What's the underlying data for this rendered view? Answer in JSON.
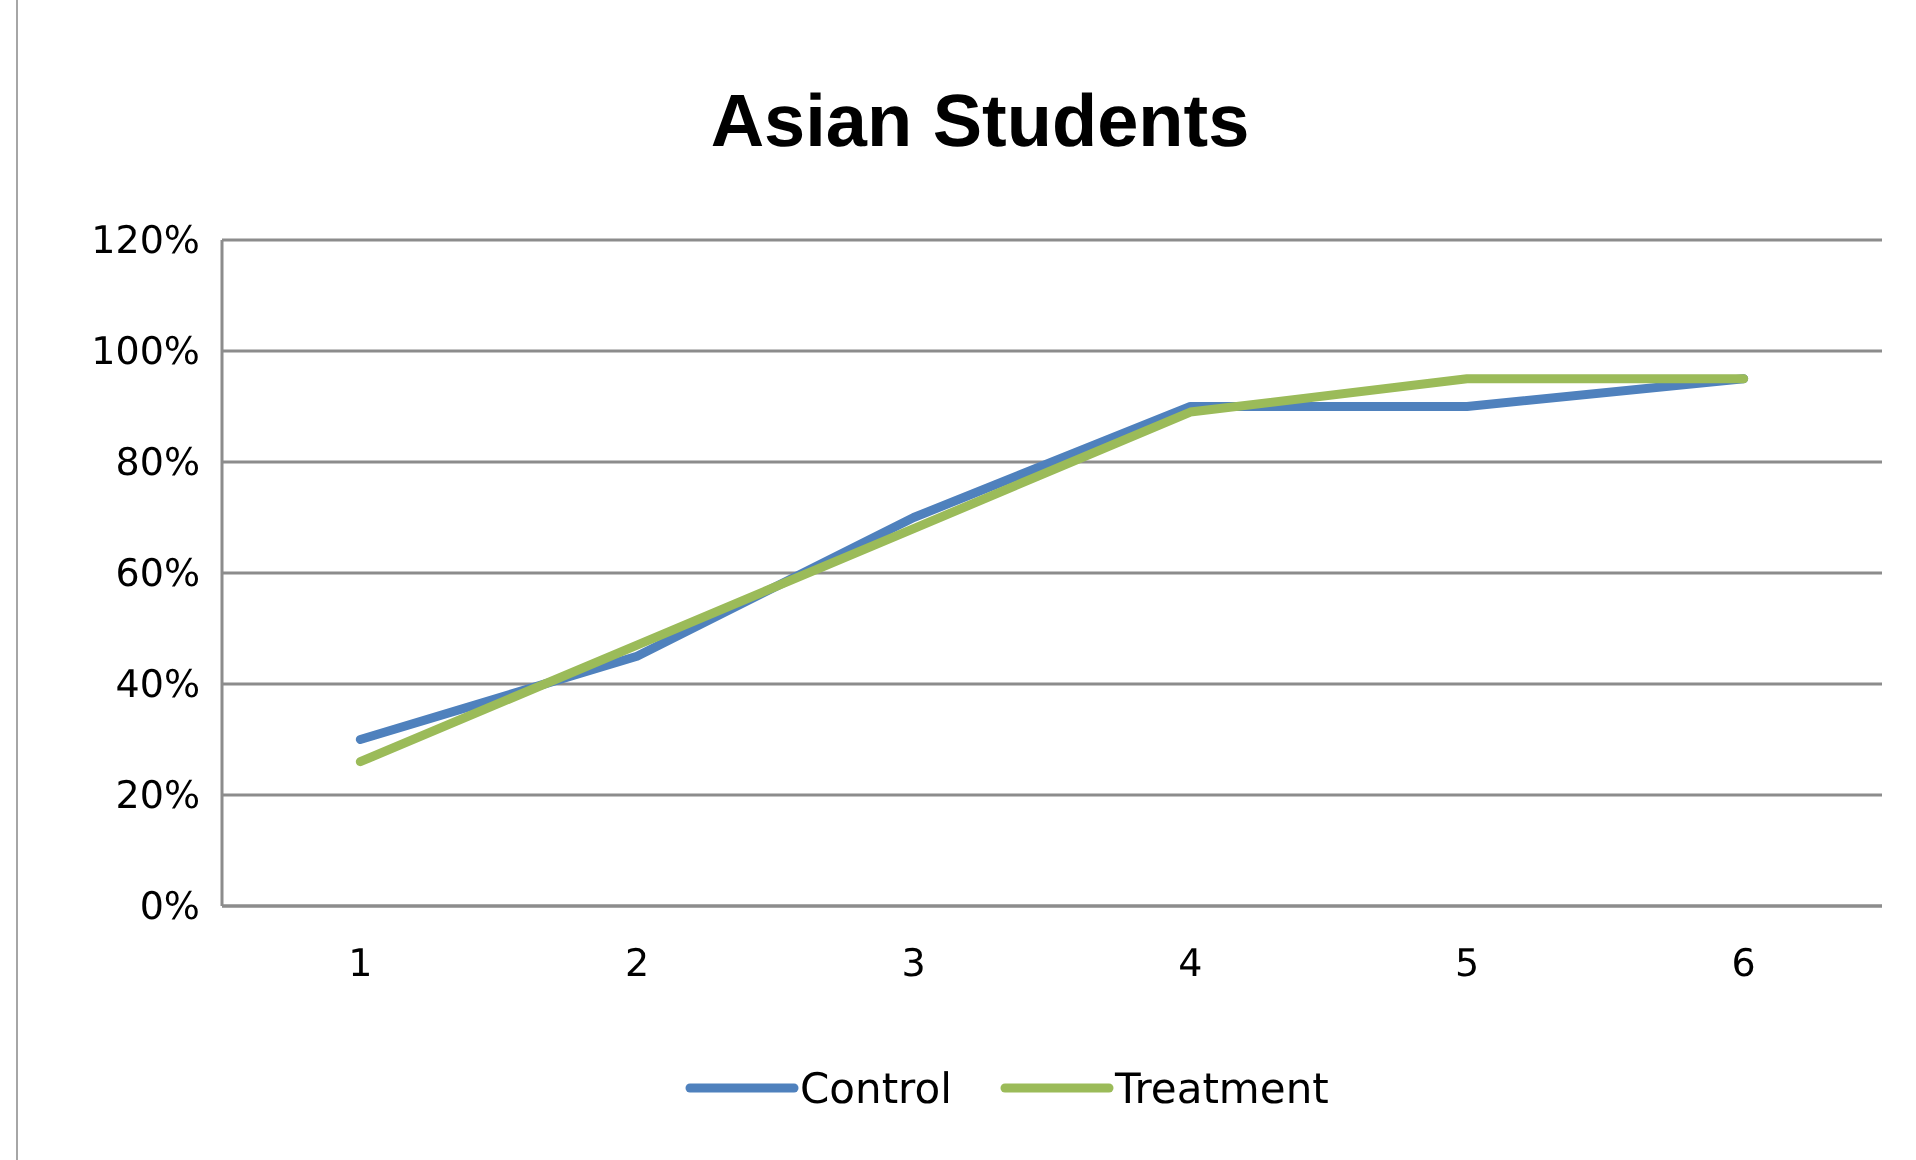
{
  "chart_data": {
    "type": "line",
    "title": "Asian Students",
    "categories": [
      "1",
      "2",
      "3",
      "4",
      "5",
      "6"
    ],
    "series": [
      {
        "name": "Control",
        "color": "#4f81bd",
        "values": [
          0.3,
          0.45,
          0.7,
          0.9,
          0.9,
          0.95
        ]
      },
      {
        "name": "Treatment",
        "color": "#9bbb59",
        "values": [
          0.26,
          0.47,
          0.68,
          0.89,
          0.95,
          0.95
        ]
      }
    ],
    "ylim": [
      0,
      1.2
    ],
    "yticks": [
      {
        "value": 0,
        "label": "0%"
      },
      {
        "value": 0.2,
        "label": "20%"
      },
      {
        "value": 0.4,
        "label": "40%"
      },
      {
        "value": 0.6,
        "label": "60%"
      },
      {
        "value": 0.8,
        "label": "80%"
      },
      {
        "value": 1.0,
        "label": "100%"
      },
      {
        "value": 1.2,
        "label": "120%"
      }
    ],
    "grid": "y",
    "legend": "bottom",
    "marker": "none",
    "line_style": "solid"
  }
}
